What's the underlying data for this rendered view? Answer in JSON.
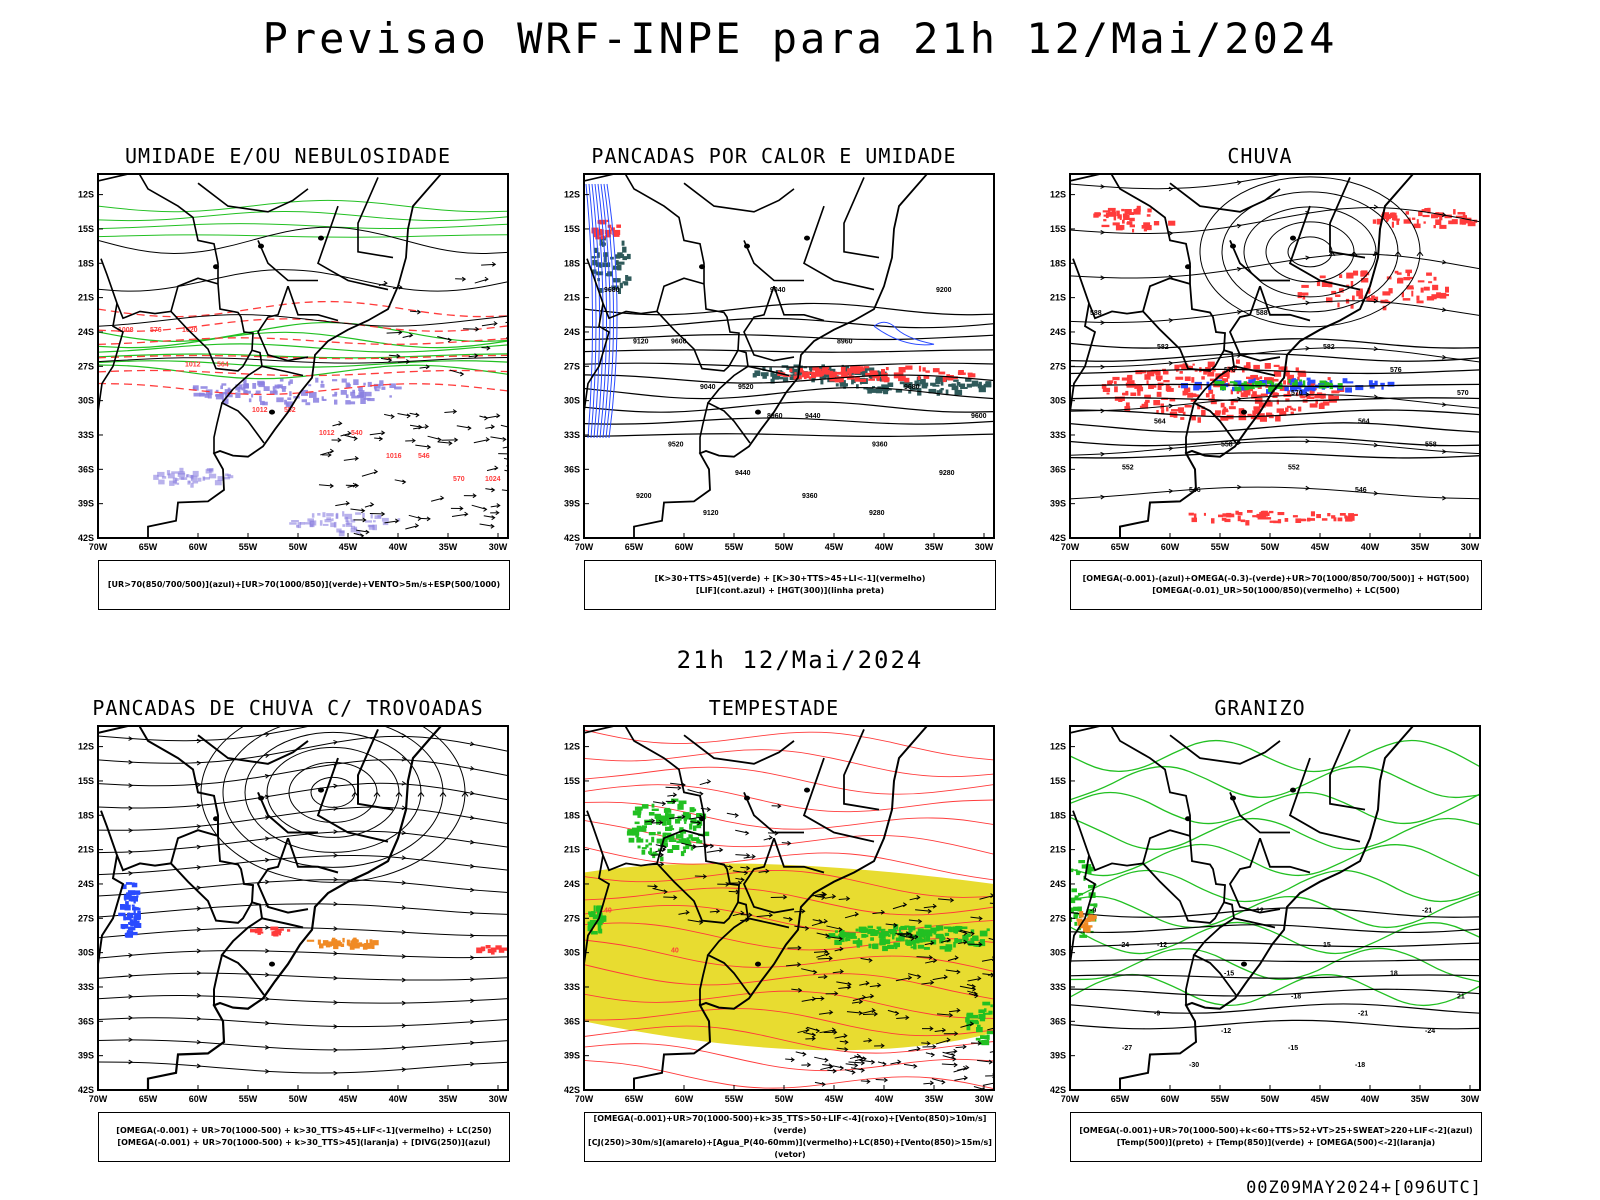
{
  "header": {
    "title": "Previsao WRF-INPE  para 21h 12/Mai/2024"
  },
  "mid_title": "21h 12/Mai/2024",
  "footer": "00Z09MAY2024+[096UTC]",
  "axis": {
    "lat_labels": [
      "12S",
      "15S",
      "18S",
      "21S",
      "24S",
      "27S",
      "30S",
      "33S",
      "36S",
      "39S",
      "42S"
    ],
    "lon_labels": [
      "70W",
      "65W",
      "60W",
      "55W",
      "50W",
      "45W",
      "40W",
      "35W",
      "30W"
    ]
  },
  "colors": {
    "green": "#22c022",
    "red": "#ff3b3b",
    "blue": "#2a4bff",
    "purple": "#8a7fe0",
    "teal": "#2f5a5a",
    "yellow": "#e8dc30",
    "orange": "#f08a24"
  },
  "panels": [
    {
      "title": "UMIDADE E/OU NEBULOSIDADE",
      "legend": [
        "[UR>70(850/700/500)](azul)+[UR>70(1000/850)](verde)+VENTO>5m/s+ESP(500/1000)"
      ],
      "labels": [
        "1008",
        "1012",
        "1012",
        "1012",
        "1016",
        "570",
        "576",
        "564",
        "552",
        "540",
        "546",
        "1024",
        "1020"
      ]
    },
    {
      "title": "PANCADAS POR CALOR E UMIDADE",
      "legend": [
        "[K>30+TTS>45](verde) + [K>30+TTS>45+LI<-1](vermelho)",
        "[LIF](cont.azul) + [HGT(300)](linha preta)"
      ],
      "labels": [
        "9680",
        "9600",
        "9520",
        "9440",
        "9360",
        "9280",
        "9200",
        "9120",
        "9040",
        "8960",
        "9680",
        "9600",
        "9520",
        "9440",
        "9360",
        "9280",
        "9200",
        "9120",
        "9040",
        "8960"
      ]
    },
    {
      "title": "CHUVA",
      "legend": [
        "[OMEGA(-0.001)-(azul)+OMEGA(-0.3)-(verde)+UR>70(1000/850/700/500)] + HGT(500)",
        "[OMEGA(-0.01)_UR>50(1000/850)(vermelho) + LC(500)"
      ],
      "labels": [
        "588",
        "582",
        "576",
        "570",
        "564",
        "558",
        "552",
        "546",
        "588",
        "582",
        "576",
        "570",
        "564",
        "558",
        "552",
        "546"
      ]
    },
    {
      "title": "PANCADAS DE CHUVA C/ TROVOADAS",
      "legend": [
        "[OMEGA(-0.001) + UR>70(1000-500) + k>30_TTS>45+LIF<-1](vermelho) + LC(250)",
        "[OMEGA(-0.001) + UR>70(1000-500) + k>30_TTS>45](laranja) + [DIVG(250)](azul)"
      ],
      "labels": []
    },
    {
      "title": "TEMPESTADE",
      "legend": [
        "[OMEGA(-0.001)+UR>70(1000-500)+k>35_TTS>50+LIF<-4](roxo)+[Vento(850)>10m/s](verde)",
        "[CJ(250)>30m/s](amarelo)+[Agua_P(40-60mm)](vermelho)+LC(850)+[Vento(850)>15m/s](vetor)"
      ],
      "labels": [
        "40",
        "40"
      ]
    },
    {
      "title": "GRANIZO",
      "legend": [
        "[OMEGA(-0.001)+UR>70(1000-500)+k<60+TTS>52+VT>25+SWEAT>220+LIF<-2](azul)",
        "[Temp(500)](preto) + [Temp(850)](verde) + [OMEGA(500)<-2](laranja)"
      ],
      "labels": [
        "-9",
        "-12",
        "-15",
        "-18",
        "-21",
        "-24",
        "-27",
        "-30",
        "12",
        "15",
        "18",
        "21",
        "-9",
        "-12",
        "-15",
        "-18",
        "-21",
        "-24"
      ]
    }
  ]
}
